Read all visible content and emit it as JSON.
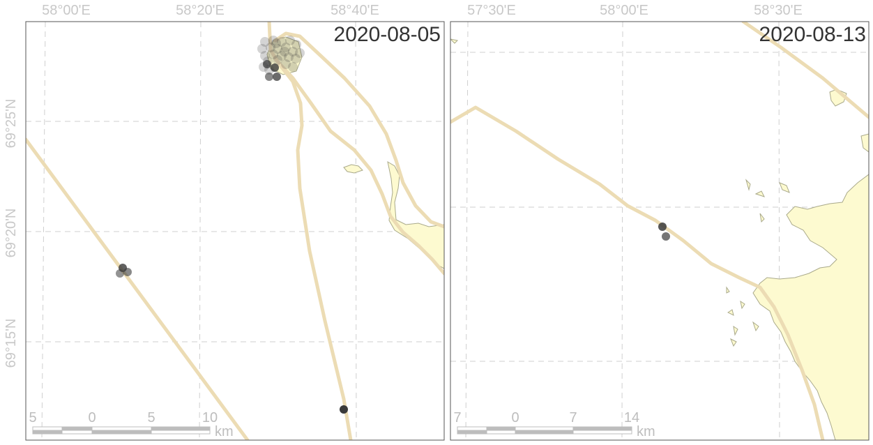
{
  "colors": {
    "land_fill": "#fdfad0",
    "land_stroke": "#a9a98a",
    "track": "#ecdcb4",
    "grid": "#cfcfcf",
    "frame": "#555555",
    "point": "#3a3a3a"
  },
  "panels": [
    {
      "date": "2020-08-05",
      "lon_labels": [
        "58°00'E",
        "58°20'E",
        "58°40'E"
      ],
      "lat_labels": [
        "69°25'N",
        "69°20'N",
        "69°15'N"
      ],
      "scale": {
        "ticks": [
          "5",
          "0",
          "5",
          "10"
        ],
        "unit": "km"
      },
      "observations": "tag detections"
    },
    {
      "date": "2020-08-13",
      "lon_labels": [
        "57°30'E",
        "58°00'E",
        "58°30'E"
      ],
      "lat_labels": [],
      "scale": {
        "ticks": [
          "7",
          "0",
          "7",
          "14"
        ],
        "unit": "km"
      },
      "observations": "tag detections"
    }
  ]
}
